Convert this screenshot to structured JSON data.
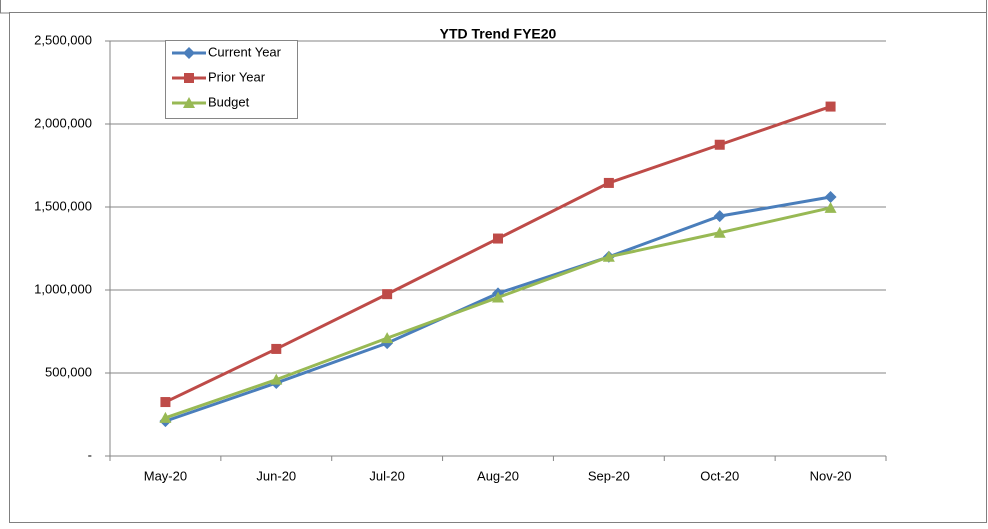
{
  "chart_data": {
    "type": "line",
    "title": "YTD Trend FYE20",
    "categories": [
      "May-20",
      "Jun-20",
      "Jul-20",
      "Aug-20",
      "Sep-20",
      "Oct-20",
      "Nov-20"
    ],
    "series": [
      {
        "name": "Current Year",
        "color": "#4a7ebb",
        "marker": "diamond",
        "values": [
          210000,
          440000,
          680000,
          980000,
          1200000,
          1445000,
          1560000
        ]
      },
      {
        "name": "Prior Year",
        "color": "#be4b48",
        "marker": "square",
        "values": [
          325000,
          645000,
          975000,
          1310000,
          1645000,
          1875000,
          2105000
        ]
      },
      {
        "name": "Budget",
        "color": "#98b954",
        "marker": "triangle",
        "values": [
          230000,
          460000,
          710000,
          955000,
          1200000,
          1345000,
          1495000
        ]
      }
    ],
    "ylim": [
      0,
      2500000
    ],
    "yticks": [
      {
        "value": 0,
        "label": "-"
      },
      {
        "value": 500000,
        "label": "500,000"
      },
      {
        "value": 1000000,
        "label": "1,000,000"
      },
      {
        "value": 1500000,
        "label": "1,500,000"
      },
      {
        "value": 2000000,
        "label": "2,000,000"
      },
      {
        "value": 2500000,
        "label": "2,500,000"
      }
    ],
    "grid": true,
    "legend": "top-left"
  }
}
